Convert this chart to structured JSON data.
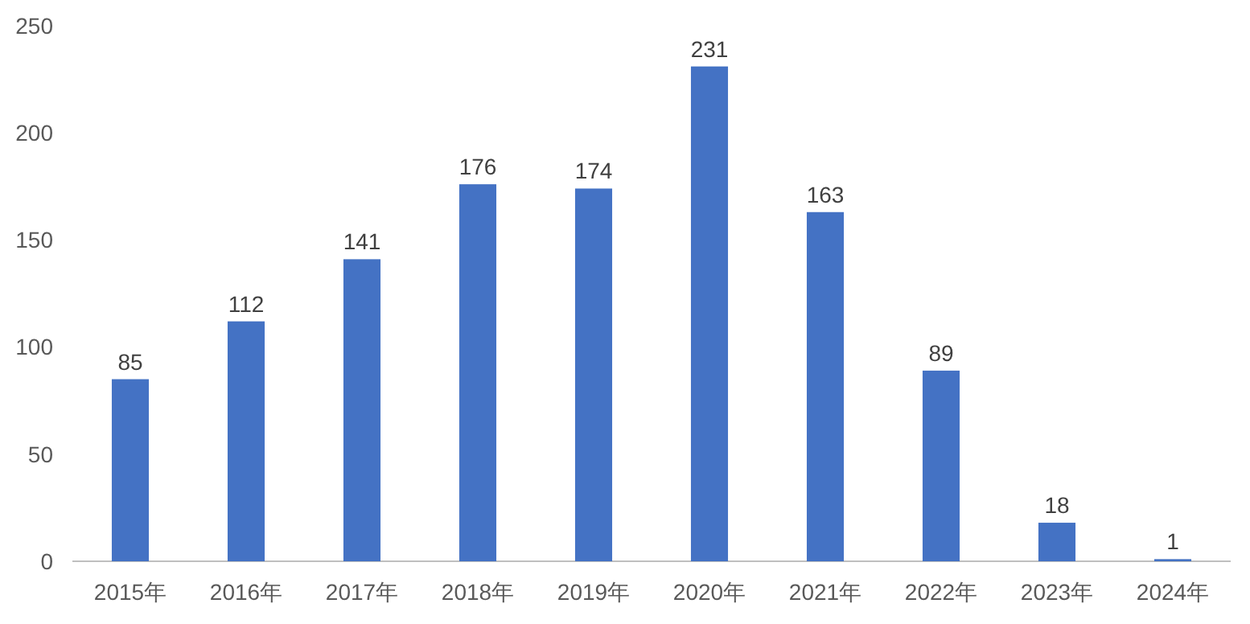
{
  "chart_data": {
    "type": "bar",
    "categories": [
      "2015年",
      "2016年",
      "2017年",
      "2018年",
      "2019年",
      "2020年",
      "2021年",
      "2022年",
      "2023年",
      "2024年"
    ],
    "values": [
      85,
      112,
      141,
      176,
      174,
      231,
      163,
      89,
      18,
      1
    ],
    "color": "#4472c4",
    "ylim": [
      0,
      250
    ],
    "yticks": [
      0,
      50,
      100,
      150,
      200,
      250
    ],
    "data_labels": true,
    "grid": false
  }
}
